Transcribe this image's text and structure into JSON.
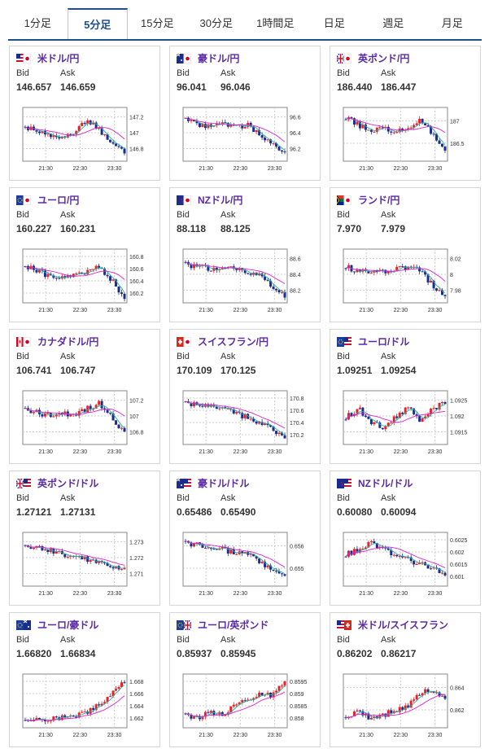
{
  "tabs": [
    {
      "label": "1分足",
      "active": false
    },
    {
      "label": "5分足",
      "active": true
    },
    {
      "label": "15分足",
      "active": false
    },
    {
      "label": "30分足",
      "active": false
    },
    {
      "label": "1時間足",
      "active": false
    },
    {
      "label": "日足",
      "active": false
    },
    {
      "label": "週足",
      "active": false
    },
    {
      "label": "月足",
      "active": false
    }
  ],
  "cards": [
    {
      "pair": "米ドル/円",
      "flag": "us-jp",
      "bid_label": "Bid",
      "ask_label": "Ask",
      "bid": "146.657",
      "ask": "146.659",
      "chart": {
        "y_ticks": [
          "147.2",
          "147",
          "146.8"
        ],
        "x_ticks": [
          "21:30",
          "22:30",
          "23:30"
        ]
      }
    },
    {
      "pair": "豪ドル/円",
      "flag": "au-jp",
      "bid_label": "Bid",
      "ask_label": "Ask",
      "bid": "96.041",
      "ask": "96.046",
      "chart": {
        "y_ticks": [
          "96.6",
          "96.4",
          "96.2"
        ],
        "x_ticks": [
          "21:30",
          "22:30",
          "23:30"
        ]
      }
    },
    {
      "pair": "英ポンド/円",
      "flag": "gb-jp",
      "bid_label": "Bid",
      "ask_label": "Ask",
      "bid": "186.440",
      "ask": "186.447",
      "chart": {
        "y_ticks": [
          "187",
          "186.5"
        ],
        "x_ticks": [
          "21:30",
          "22:30",
          "23:30"
        ]
      }
    },
    {
      "pair": "ユーロ/円",
      "flag": "eu-jp",
      "bid_label": "Bid",
      "ask_label": "Ask",
      "bid": "160.227",
      "ask": "160.231",
      "chart": {
        "y_ticks": [
          "160.8",
          "160.6",
          "160.4",
          "160.2"
        ],
        "x_ticks": [
          "21:30",
          "22:30",
          "23:30"
        ]
      }
    },
    {
      "pair": "NZドル/円",
      "flag": "nz-jp",
      "bid_label": "Bid",
      "ask_label": "Ask",
      "bid": "88.118",
      "ask": "88.125",
      "chart": {
        "y_ticks": [
          "88.6",
          "88.4",
          "88.2"
        ],
        "x_ticks": [
          "21:30",
          "22:30",
          "23:30"
        ]
      }
    },
    {
      "pair": "ランド/円",
      "flag": "za-jp",
      "bid_label": "Bid",
      "ask_label": "Ask",
      "bid": "7.970",
      "ask": "7.979",
      "chart": {
        "y_ticks": [
          "8.02",
          "8",
          "7.98"
        ],
        "x_ticks": [
          "21:30",
          "22:30",
          "23:30"
        ]
      }
    },
    {
      "pair": "カナダドル/円",
      "flag": "ca-jp",
      "bid_label": "Bid",
      "ask_label": "Ask",
      "bid": "106.741",
      "ask": "106.747",
      "chart": {
        "y_ticks": [
          "107.2",
          "107",
          "106.8"
        ],
        "x_ticks": [
          "21:30",
          "22:30",
          "23:30"
        ]
      }
    },
    {
      "pair": "スイスフラン/円",
      "flag": "ch-jp",
      "bid_label": "Bid",
      "ask_label": "Ask",
      "bid": "170.109",
      "ask": "170.125",
      "chart": {
        "y_ticks": [
          "170.8",
          "170.6",
          "170.4",
          "170.2"
        ],
        "x_ticks": [
          "21:30",
          "22:30",
          "23:30"
        ]
      }
    },
    {
      "pair": "ユーロ/ドル",
      "flag": "eu-us",
      "bid_label": "Bid",
      "ask_label": "Ask",
      "bid": "1.09251",
      "ask": "1.09254",
      "chart": {
        "y_ticks": [
          "1.0925",
          "1.092",
          "1.0915"
        ],
        "x_ticks": [
          "21:30",
          "22:30",
          "23:30"
        ]
      }
    },
    {
      "pair": "英ポンド/ドル",
      "flag": "gb-us",
      "bid_label": "Bid",
      "ask_label": "Ask",
      "bid": "1.27121",
      "ask": "1.27131",
      "chart": {
        "y_ticks": [
          "1.273",
          "1.272",
          "1.271"
        ],
        "x_ticks": [
          "21:30",
          "22:30",
          "23:30"
        ]
      }
    },
    {
      "pair": "豪ドル/ドル",
      "flag": "au-us",
      "bid_label": "Bid",
      "ask_label": "Ask",
      "bid": "0.65486",
      "ask": "0.65490",
      "chart": {
        "y_ticks": [
          "0.656",
          "0.655"
        ],
        "x_ticks": [
          "21:30",
          "22:30",
          "23:30"
        ]
      }
    },
    {
      "pair": "NZドル/ドル",
      "flag": "nz-us",
      "bid_label": "Bid",
      "ask_label": "Ask",
      "bid": "0.60080",
      "ask": "0.60094",
      "chart": {
        "y_ticks": [
          "0.6025",
          "0.602",
          "0.6015",
          "0.601"
        ],
        "x_ticks": [
          "21:30",
          "22:30",
          "23:30"
        ]
      }
    },
    {
      "pair": "ユーロ/豪ドル",
      "flag": "eu-au",
      "bid_label": "Bid",
      "ask_label": "Ask",
      "bid": "1.66820",
      "ask": "1.66834",
      "chart": {
        "y_ticks": [
          "1.668",
          "1.666",
          "1.664",
          "1.662"
        ],
        "x_ticks": [
          "21:30",
          "22:30",
          "23:30"
        ]
      }
    },
    {
      "pair": "ユーロ/英ポンド",
      "flag": "eu-gb",
      "bid_label": "Bid",
      "ask_label": "Ask",
      "bid": "0.85937",
      "ask": "0.85945",
      "chart": {
        "y_ticks": [
          "0.8595",
          "0.859",
          "0.8585",
          "0.858"
        ],
        "x_ticks": [
          "21:30",
          "22:30",
          "23:30"
        ]
      }
    },
    {
      "pair": "米ドル/スイスフラン",
      "flag": "us-ch",
      "bid_label": "Bid",
      "ask_label": "Ask",
      "bid": "0.86202",
      "ask": "0.86217",
      "chart": {
        "y_ticks": [
          "0.864",
          "0.862"
        ],
        "x_ticks": [
          "21:30",
          "22:30",
          "23:30"
        ]
      }
    }
  ],
  "colors": {
    "accent": "#1f4e8c",
    "pair_text": "#5b2aa6",
    "up": "#e8212a",
    "down": "#1a2d8f",
    "ma_fast": "#2ab0a0",
    "ma_slow": "#e020d0"
  }
}
